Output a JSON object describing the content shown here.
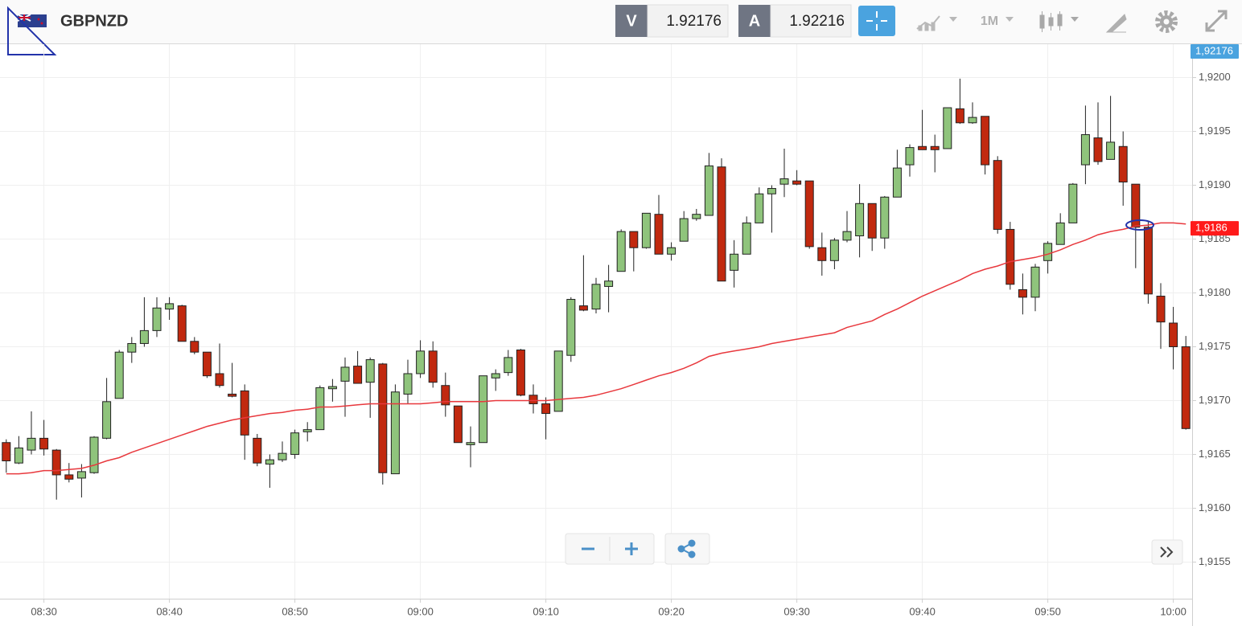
{
  "header": {
    "symbol": "GBPNZD",
    "bid_label": "V",
    "bid": 1.92176,
    "ask_label": "A",
    "ask": 1.92216,
    "timeframe": "1M"
  },
  "chart_data": {
    "type": "candlestick",
    "categories": [
      null,
      null,
      null,
      "08:30",
      null,
      null,
      null,
      null,
      null,
      null,
      null,
      null,
      null,
      "08:40",
      null,
      null,
      null,
      null,
      null,
      null,
      null,
      null,
      null,
      "08:50",
      null,
      null,
      null,
      null,
      null,
      null,
      null,
      null,
      null,
      "09:00",
      null,
      null,
      null,
      null,
      null,
      null,
      null,
      null,
      null,
      "09:10",
      null,
      null,
      null,
      null,
      null,
      null,
      null,
      null,
      null,
      "09:20",
      null,
      null,
      null,
      null,
      null,
      null,
      null,
      null,
      null,
      "09:30",
      null,
      null,
      null,
      null,
      null,
      null,
      null,
      null,
      null,
      "09:40",
      null,
      null,
      null,
      null,
      null,
      null,
      null,
      null,
      null,
      "09:50",
      null,
      null,
      null,
      null,
      null,
      null,
      null,
      null,
      null,
      "10:00",
      null
    ],
    "open": [
      1.91661,
      1.91642,
      1.91654,
      1.91665,
      1.91654,
      1.91631,
      1.91628,
      1.91633,
      1.91665,
      1.91702,
      1.91745,
      1.91753,
      1.91765,
      1.91785,
      1.91788,
      1.91755,
      1.91745,
      1.91725,
      1.91706,
      1.91709,
      1.91665,
      1.91641,
      1.91645,
      1.9165,
      1.91671,
      1.91673,
      1.91711,
      1.91718,
      1.91732,
      1.91717,
      1.91734,
      1.91632,
      1.91706,
      1.91725,
      1.91746,
      1.91714,
      1.91695,
      1.91659,
      1.91661,
      1.91721,
      1.91726,
      1.91747,
      1.91705,
      1.91697,
      1.9169,
      1.91742,
      1.91788,
      1.91785,
      1.91806,
      1.9182,
      1.91857,
      1.91842,
      1.91873,
      1.91836,
      1.91848,
      1.91869,
      1.91872,
      1.91917,
      1.91821,
      1.91836,
      1.91865,
      1.91892,
      1.91901,
      1.91904,
      1.91904,
      1.91842,
      1.9183,
      1.91849,
      1.91853,
      1.91883,
      1.91851,
      1.91889,
      1.91919,
      1.91936,
      1.91936,
      1.91934,
      1.91971,
      1.91958,
      1.91964,
      1.91923,
      1.91859,
      1.91803,
      1.91796,
      1.9183,
      1.91845,
      1.91865,
      1.91919,
      1.91944,
      1.91924,
      1.91936,
      1.91901,
      1.91861,
      1.91797,
      1.91772,
      1.9175
    ],
    "high": [
      1.91664,
      1.91667,
      1.9169,
      1.91682,
      1.91655,
      1.91642,
      1.91641,
      1.91667,
      1.91721,
      1.91747,
      1.91759,
      1.91796,
      1.91796,
      1.91796,
      1.91789,
      1.91759,
      1.91745,
      1.91753,
      1.91735,
      1.91715,
      1.91669,
      1.9165,
      1.91662,
      1.91673,
      1.9168,
      1.91714,
      1.9172,
      1.9174,
      1.91746,
      1.9174,
      1.91735,
      1.91715,
      1.91738,
      1.91756,
      1.91755,
      1.91726,
      1.91695,
      1.91676,
      1.91723,
      1.91729,
      1.91747,
      1.91748,
      1.91715,
      1.91703,
      1.91746,
      1.91796,
      1.91835,
      1.91814,
      1.91826,
      1.91859,
      1.91857,
      1.91874,
      1.91891,
      1.91847,
      1.91876,
      1.91878,
      1.9193,
      1.91925,
      1.91849,
      1.91871,
      1.91898,
      1.919,
      1.91934,
      1.91914,
      1.91904,
      1.91856,
      1.91851,
      1.91876,
      1.91901,
      1.91883,
      1.9189,
      1.91933,
      1.91938,
      1.9197,
      1.91947,
      1.91972,
      1.91999,
      1.91977,
      1.91964,
      1.91927,
      1.91866,
      1.91818,
      1.91827,
      1.91848,
      1.91874,
      1.91902,
      1.91974,
      1.91977,
      1.91983,
      1.9195,
      1.91901,
      1.91867,
      1.91809,
      1.91787,
      1.9176
    ],
    "low": [
      1.91633,
      1.91641,
      1.9165,
      1.91649,
      1.91608,
      1.91624,
      1.9161,
      1.91632,
      1.91664,
      1.91702,
      1.91735,
      1.9175,
      1.91759,
      1.91775,
      1.91755,
      1.91743,
      1.91721,
      1.91712,
      1.91703,
      1.91645,
      1.91639,
      1.91619,
      1.91643,
      1.91646,
      1.91662,
      1.91673,
      1.91699,
      1.91685,
      1.91716,
      1.91684,
      1.91622,
      1.91632,
      1.91697,
      1.91721,
      1.91712,
      1.91685,
      1.91661,
      1.91638,
      1.91661,
      1.91709,
      1.91723,
      1.91704,
      1.91688,
      1.91664,
      1.9169,
      1.91736,
      1.91783,
      1.91781,
      1.91782,
      1.9182,
      1.9182,
      1.91841,
      1.91836,
      1.9183,
      1.91848,
      1.91867,
      1.91872,
      1.91811,
      1.91805,
      1.91836,
      1.91865,
      1.91856,
      1.91889,
      1.919,
      1.91841,
      1.91816,
      1.91822,
      1.91847,
      1.91833,
      1.91839,
      1.91841,
      1.91889,
      1.91908,
      1.91933,
      1.91912,
      1.91934,
      1.91957,
      1.91957,
      1.9191,
      1.91855,
      1.91803,
      1.9178,
      1.91783,
      1.91818,
      1.91845,
      1.91865,
      1.91901,
      1.91919,
      1.91924,
      1.91881,
      1.91823,
      1.9179,
      1.91748,
      1.91729,
      1.91673
    ],
    "close": [
      1.91644,
      1.91656,
      1.91665,
      1.91655,
      1.91631,
      1.91627,
      1.91634,
      1.91666,
      1.91699,
      1.91745,
      1.91753,
      1.91765,
      1.91786,
      1.9179,
      1.91755,
      1.91745,
      1.91723,
      1.91714,
      1.91704,
      1.91668,
      1.91642,
      1.91645,
      1.91651,
      1.9167,
      1.91673,
      1.91712,
      1.91713,
      1.91731,
      1.91716,
      1.91738,
      1.91633,
      1.91708,
      1.91725,
      1.91746,
      1.91717,
      1.91696,
      1.91661,
      1.91661,
      1.91723,
      1.91725,
      1.9174,
      1.91705,
      1.91697,
      1.91688,
      1.91746,
      1.91794,
      1.91784,
      1.91808,
      1.91811,
      1.91857,
      1.91842,
      1.91874,
      1.91836,
      1.91842,
      1.91869,
      1.91873,
      1.91918,
      1.91811,
      1.91836,
      1.91865,
      1.91892,
      1.91897,
      1.91906,
      1.91901,
      1.91843,
      1.9183,
      1.91849,
      1.91857,
      1.91883,
      1.91851,
      1.91889,
      1.91916,
      1.91935,
      1.91933,
      1.91933,
      1.91972,
      1.91958,
      1.91963,
      1.91919,
      1.91859,
      1.91808,
      1.91796,
      1.91824,
      1.91846,
      1.91865,
      1.91901,
      1.91947,
      1.91922,
      1.9194,
      1.91903,
      1.91861,
      1.91799,
      1.91773,
      1.9175,
      1.91674
    ],
    "up_color": "#8fc47c",
    "down_color": "#c1290f",
    "overlay": {
      "type": "line",
      "color": "#e8383d",
      "values": [
        1.91632,
        1.91632,
        1.91633,
        1.91635,
        1.91635,
        1.91636,
        1.91637,
        1.9164,
        1.91644,
        1.91647,
        1.91652,
        1.91656,
        1.9166,
        1.91664,
        1.91668,
        1.91672,
        1.91676,
        1.91679,
        1.91682,
        1.91684,
        1.91686,
        1.91688,
        1.91689,
        1.91691,
        1.91692,
        1.91694,
        1.91694,
        1.91695,
        1.91696,
        1.91697,
        1.91697,
        1.91697,
        1.91697,
        1.91697,
        1.91698,
        1.91699,
        1.91699,
        1.91699,
        1.91699,
        1.917,
        1.917,
        1.917,
        1.917,
        1.917,
        1.91701,
        1.91702,
        1.91703,
        1.91705,
        1.91708,
        1.91711,
        1.91715,
        1.91719,
        1.91723,
        1.91726,
        1.9173,
        1.91735,
        1.91741,
        1.91744,
        1.91746,
        1.91748,
        1.9175,
        1.91753,
        1.91755,
        1.91757,
        1.91759,
        1.91761,
        1.91763,
        1.91768,
        1.91771,
        1.91774,
        1.9178,
        1.91785,
        1.91791,
        1.91797,
        1.91802,
        1.91807,
        1.91812,
        1.91818,
        1.91822,
        1.91825,
        1.91829,
        1.91831,
        1.91833,
        1.91836,
        1.9184,
        1.91845,
        1.91849,
        1.91854,
        1.91857,
        1.91859,
        1.91862,
        1.91863,
        1.91865,
        1.91865,
        1.91864
      ]
    },
    "ylim": [
      1.91516,
      1.92031
    ],
    "yticks": [
      {
        "value": 1.9155,
        "label": "1,9155"
      },
      {
        "value": 1.916,
        "label": "1,9160"
      },
      {
        "value": 1.9165,
        "label": "1,9165"
      },
      {
        "value": 1.917,
        "label": "1,9170"
      },
      {
        "value": 1.9175,
        "label": "1,9175"
      },
      {
        "value": 1.918,
        "label": "1,9180"
      },
      {
        "value": 1.9185,
        "label": "1,9185"
      },
      {
        "value": 1.919,
        "label": "1,9190"
      },
      {
        "value": 1.9195,
        "label": "1,9195"
      },
      {
        "value": 1.92,
        "label": "1,9200"
      }
    ],
    "grid": true,
    "price_labels": [
      {
        "value": 1.92176,
        "label": "1,92176"
      },
      {
        "value": 1.9186,
        "label": "1,9186"
      }
    ]
  }
}
